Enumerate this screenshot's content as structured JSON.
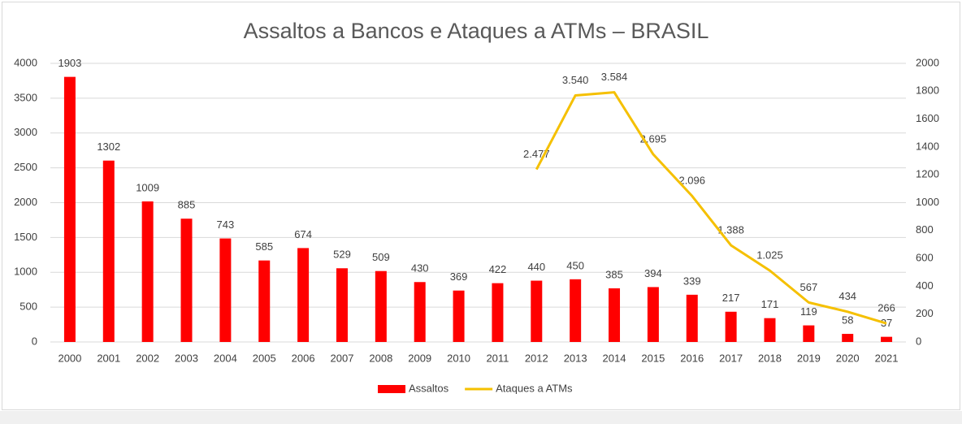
{
  "chart_data": {
    "type": "bar",
    "title": "Assaltos a Bancos e Ataques a ATMs – BRASIL",
    "categories": [
      "2000",
      "2001",
      "2002",
      "2003",
      "2004",
      "2005",
      "2006",
      "2007",
      "2008",
      "2009",
      "2010",
      "2011",
      "2012",
      "2013",
      "2014",
      "2015",
      "2016",
      "2017",
      "2018",
      "2019",
      "2020",
      "2021"
    ],
    "series": [
      {
        "name": "Assaltos",
        "type": "bar",
        "color": "#ff0000",
        "axis": "y2",
        "values": [
          1903,
          1302,
          1009,
          885,
          743,
          585,
          674,
          529,
          509,
          430,
          369,
          422,
          440,
          450,
          385,
          394,
          339,
          217,
          171,
          119,
          58,
          37
        ]
      },
      {
        "name": "Ataques a ATMs",
        "type": "line",
        "color": "#f5c000",
        "axis": "y",
        "values": [
          null,
          null,
          null,
          null,
          null,
          null,
          null,
          null,
          null,
          null,
          null,
          null,
          2477,
          3540,
          3584,
          2695,
          2096,
          1388,
          1025,
          567,
          434,
          266
        ],
        "value_labels": [
          null,
          null,
          null,
          null,
          null,
          null,
          null,
          null,
          null,
          null,
          null,
          null,
          "2.477",
          "3.540",
          "3.584",
          "2.695",
          "2.096",
          "1.388",
          "1.025",
          "567",
          "434",
          "266"
        ]
      }
    ],
    "ylim": [
      0,
      4000
    ],
    "yticks": [
      0,
      500,
      1000,
      1500,
      2000,
      2500,
      3000,
      3500,
      4000
    ],
    "y2lim": [
      0,
      2000
    ],
    "y2ticks": [
      0,
      200,
      400,
      600,
      800,
      1000,
      1200,
      1400,
      1600,
      1800,
      2000
    ],
    "grid": true,
    "legend": "bottom"
  }
}
